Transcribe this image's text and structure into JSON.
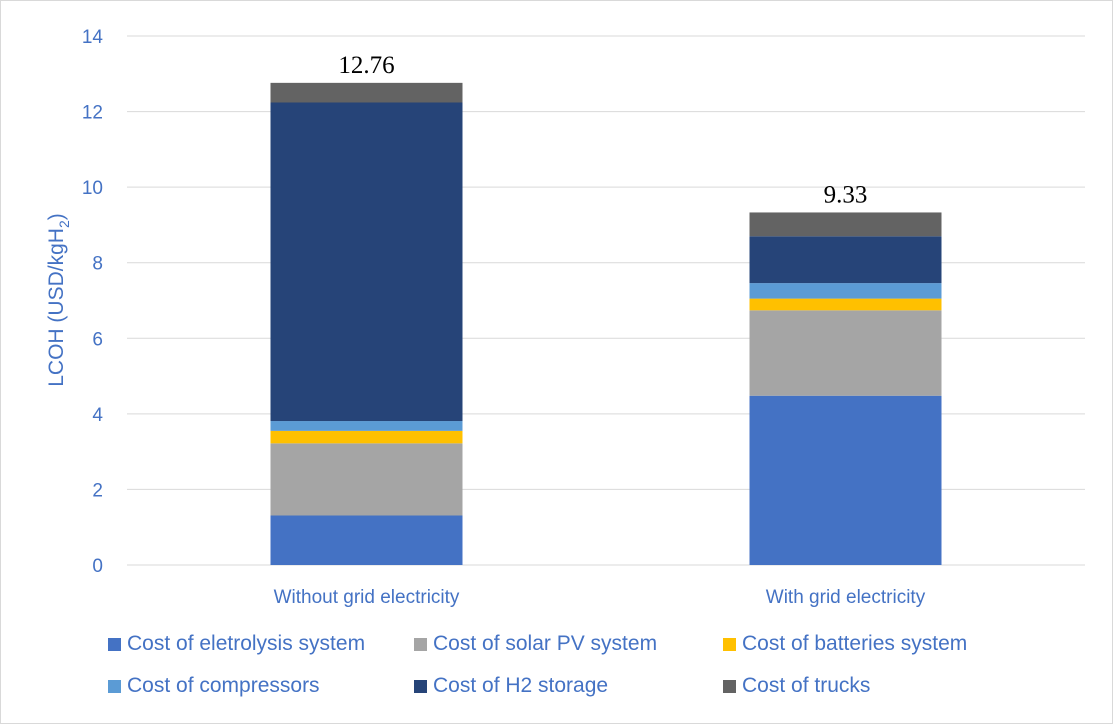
{
  "chart_data": {
    "type": "bar",
    "stacked": true,
    "ylabel": "LCOH  (USD/kgH",
    "ylabel_sub": "2",
    "ylabel_close": ")",
    "ylim": [
      0,
      14
    ],
    "yticks": [
      0,
      2,
      4,
      6,
      8,
      10,
      12,
      14
    ],
    "grid": true,
    "legend_position": "bottom",
    "categories": [
      "Without grid electricity",
      "With grid electricity"
    ],
    "totals": [
      "12.76",
      "9.33"
    ],
    "series": [
      {
        "name": "Cost of eletrolysis system",
        "color": "#4472c4",
        "values": [
          1.31,
          4.48
        ]
      },
      {
        "name": "Cost of solar PV system",
        "color": "#a5a5a5",
        "values": [
          1.91,
          2.26
        ]
      },
      {
        "name": "Cost of batteries system",
        "color": "#ffc000",
        "values": [
          0.33,
          0.31
        ]
      },
      {
        "name": "Cost of compressors",
        "color": "#5b9bd5",
        "values": [
          0.26,
          0.41
        ]
      },
      {
        "name": "Cost of H2 storage",
        "color": "#264478",
        "values": [
          8.43,
          1.24
        ]
      },
      {
        "name": "Cost of trucks",
        "color": "#636363",
        "values": [
          0.52,
          0.63
        ]
      }
    ]
  }
}
